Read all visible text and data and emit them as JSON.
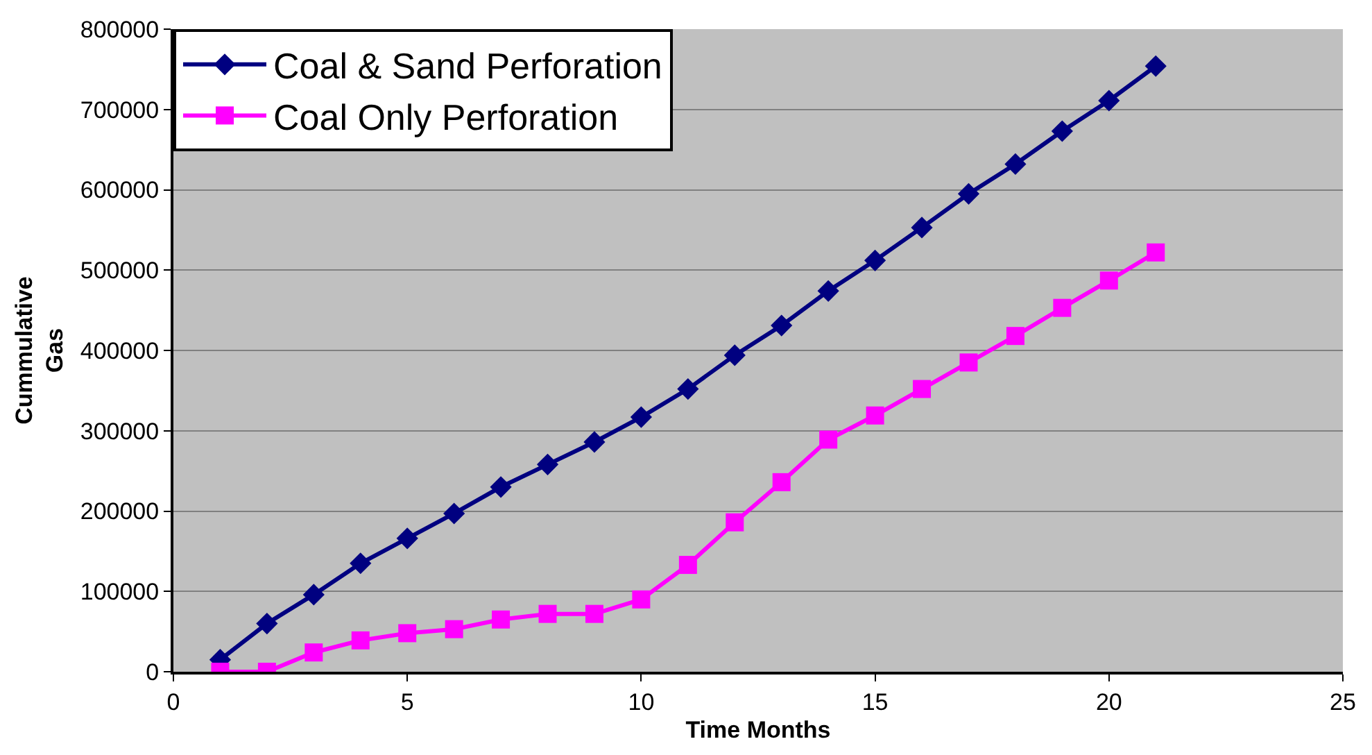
{
  "chart_data": {
    "type": "line",
    "xlabel": "Time Months",
    "ylabel": "Cummulative\nGas",
    "x": [
      1,
      2,
      3,
      4,
      5,
      6,
      7,
      8,
      9,
      10,
      11,
      12,
      13,
      14,
      15,
      16,
      17,
      18,
      19,
      20,
      21
    ],
    "series": [
      {
        "name": "Coal & Sand Perforation",
        "color": "#000080",
        "marker": "diamond",
        "values": [
          15000,
          60000,
          96000,
          135000,
          166000,
          197000,
          230000,
          258000,
          286000,
          317000,
          352000,
          394000,
          431000,
          474000,
          512000,
          553000,
          595000,
          632000,
          673000,
          711000,
          754000
        ]
      },
      {
        "name": "Coal Only Perforation",
        "color": "#ff00ff",
        "marker": "square",
        "values": [
          0,
          0,
          24000,
          39000,
          48000,
          53000,
          65000,
          72000,
          72000,
          90000,
          133000,
          186000,
          236000,
          289000,
          319000,
          352000,
          385000,
          418000,
          453000,
          487000,
          522000
        ]
      }
    ],
    "xlim": [
      0,
      25
    ],
    "xticks": [
      0,
      5,
      10,
      15,
      20,
      25
    ],
    "ylim": [
      0,
      800000
    ],
    "yticks": [
      0,
      100000,
      200000,
      300000,
      400000,
      500000,
      600000,
      700000,
      800000
    ],
    "grid": "y",
    "legend": "top left",
    "line_style": "solid"
  }
}
